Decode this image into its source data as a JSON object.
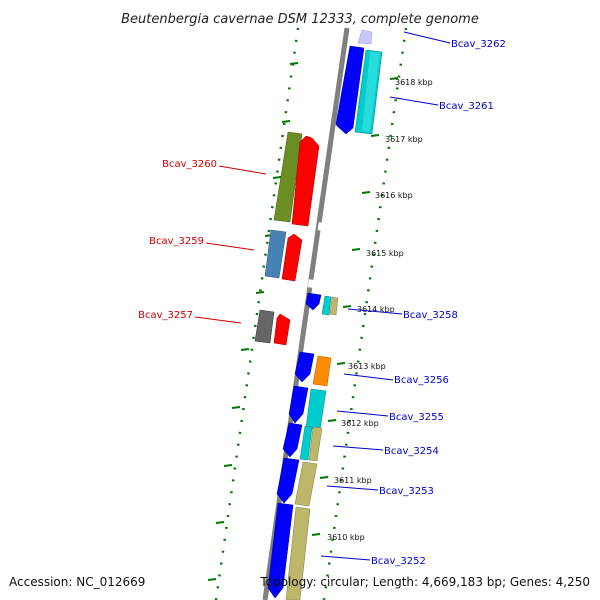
{
  "title": "Beutenbergia cavernae DSM 12333, complete genome",
  "footer": {
    "accession": "Accession: NC_012669",
    "topology": "Topology: circular; Length: 4,669,183 bp; Genes: 4,250"
  },
  "kbp_labels": [
    "3618 kbp",
    "3617 kbp",
    "3616 kbp",
    "3615 kbp",
    "3614 kbp",
    "3613 kbp",
    "3612 kbp",
    "3611 kbp",
    "3610 kbp"
  ],
  "gene_labels": {
    "right": [
      "Bcav_3262",
      "Bcav_3261",
      "Bcav_3258",
      "Bcav_3256",
      "Bcav_3255",
      "Bcav_3254",
      "Bcav_3253",
      "Bcav_3252"
    ],
    "left": [
      "Bcav_3260",
      "Bcav_3259",
      "Bcav_3257"
    ]
  },
  "colors": {
    "label_blue": "#0000cc",
    "label_red": "#cc0000",
    "tick_green": "#007700",
    "backbone": "#808080",
    "gene_blue": "#0000ff",
    "gene_cyan": "#00cccc",
    "gene_red": "#ff0000",
    "gene_olive": "#6b8e23",
    "gene_steel": "#4682b4",
    "gene_gray": "#666666",
    "gene_orange": "#ff8c00",
    "gene_khaki": "#bdb76b",
    "gene_lavender": "#c8c8ff"
  }
}
